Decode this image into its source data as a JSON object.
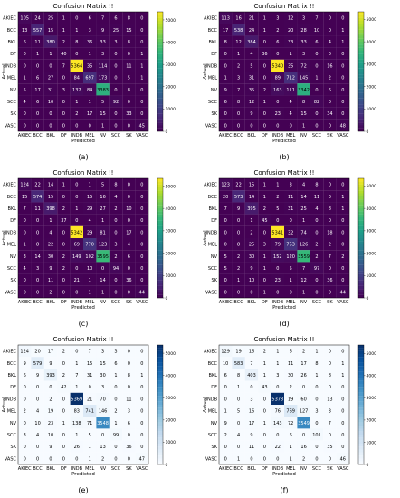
{
  "figure": {
    "labels": [
      "AKIEC",
      "BCC",
      "BKL",
      "DF",
      "INDB",
      "MEL",
      "NV",
      "SCC",
      "SK",
      "VASC"
    ]
  },
  "chart_data": [
    {
      "type": "heatmap",
      "title": "Confusion Matrix !!",
      "caption": "(a)",
      "xlabel": "Predicted",
      "ylabel": "Actual",
      "colormap": "viridis",
      "colorbar_ticks": [
        0,
        1000,
        2000,
        3000,
        4000,
        5000
      ],
      "vmax": 5364,
      "matrix": [
        [
          105,
          24,
          25,
          1,
          0,
          6,
          7,
          6,
          8,
          0
        ],
        [
          13,
          557,
          15,
          1,
          1,
          3,
          9,
          25,
          15,
          0
        ],
        [
          6,
          11,
          380,
          2,
          8,
          36,
          33,
          3,
          8,
          0
        ],
        [
          0,
          1,
          1,
          40,
          0,
          1,
          3,
          0,
          0,
          1
        ],
        [
          0,
          0,
          0,
          7,
          5364,
          35,
          114,
          0,
          11,
          1
        ],
        [
          1,
          6,
          27,
          0,
          84,
          697,
          173,
          0,
          5,
          1
        ],
        [
          5,
          17,
          31,
          3,
          132,
          84,
          3383,
          0,
          8,
          0
        ],
        [
          4,
          6,
          10,
          0,
          1,
          1,
          5,
          92,
          0,
          0
        ],
        [
          0,
          0,
          0,
          0,
          2,
          17,
          15,
          0,
          33,
          0
        ],
        [
          0,
          0,
          0,
          0,
          0,
          0,
          1,
          0,
          0,
          45
        ]
      ]
    },
    {
      "type": "heatmap",
      "title": "Confusion Matrix !!",
      "caption": "(b)",
      "xlabel": "Predicted",
      "ylabel": "Actual",
      "colormap": "viridis",
      "colorbar_ticks": [
        0,
        1000,
        2000,
        3000,
        4000,
        5000
      ],
      "vmax": 5340,
      "matrix": [
        [
          113,
          16,
          21,
          1,
          3,
          12,
          3,
          7,
          0,
          0
        ],
        [
          17,
          538,
          24,
          1,
          2,
          20,
          28,
          10,
          0,
          1
        ],
        [
          8,
          12,
          384,
          0,
          6,
          33,
          33,
          6,
          4,
          1
        ],
        [
          0,
          1,
          4,
          36,
          0,
          1,
          3,
          0,
          0,
          0
        ],
        [
          0,
          2,
          5,
          0,
          5340,
          35,
          72,
          0,
          16,
          0
        ],
        [
          1,
          3,
          31,
          0,
          89,
          712,
          145,
          1,
          2,
          0
        ],
        [
          9,
          7,
          35,
          2,
          163,
          111,
          3342,
          0,
          6,
          0
        ],
        [
          6,
          8,
          12,
          1,
          0,
          4,
          8,
          82,
          0,
          0
        ],
        [
          0,
          0,
          9,
          0,
          23,
          4,
          15,
          0,
          34,
          0
        ],
        [
          0,
          0,
          0,
          0,
          0,
          0,
          1,
          0,
          0,
          48
        ]
      ]
    },
    {
      "type": "heatmap",
      "title": "Confusion Matrix !!",
      "caption": "(c)",
      "xlabel": "Predicted",
      "ylabel": "Actual",
      "colormap": "viridis",
      "colorbar_ticks": [
        0,
        1000,
        2000,
        3000,
        4000,
        5000
      ],
      "vmax": 5342,
      "matrix": [
        [
          124,
          22,
          14,
          1,
          0,
          1,
          5,
          8,
          0,
          0
        ],
        [
          15,
          574,
          15,
          0,
          0,
          15,
          16,
          4,
          0,
          0
        ],
        [
          7,
          11,
          398,
          2,
          1,
          29,
          27,
          2,
          10,
          0
        ],
        [
          0,
          0,
          1,
          37,
          0,
          4,
          1,
          0,
          0,
          0
        ],
        [
          0,
          0,
          4,
          0,
          5342,
          29,
          81,
          0,
          17,
          0
        ],
        [
          1,
          8,
          22,
          0,
          69,
          770,
          123,
          3,
          4,
          0
        ],
        [
          3,
          14,
          30,
          2,
          149,
          102,
          3595,
          2,
          6,
          0
        ],
        [
          4,
          3,
          9,
          2,
          0,
          10,
          0,
          94,
          0,
          0
        ],
        [
          0,
          0,
          11,
          0,
          21,
          1,
          14,
          0,
          36,
          0
        ],
        [
          0,
          0,
          2,
          0,
          0,
          1,
          1,
          0,
          0,
          44
        ]
      ]
    },
    {
      "type": "heatmap",
      "title": "Confusion Matrix !!",
      "caption": "(d)",
      "xlabel": "Predicted",
      "ylabel": "Actual",
      "colormap": "viridis",
      "colorbar_ticks": [
        0,
        1000,
        2000,
        3000,
        4000,
        5000
      ],
      "vmax": 5341,
      "matrix": [
        [
          123,
          22,
          15,
          1,
          1,
          3,
          4,
          8,
          0,
          0
        ],
        [
          20,
          573,
          14,
          1,
          2,
          11,
          14,
          11,
          0,
          1
        ],
        [
          7,
          9,
          395,
          2,
          5,
          31,
          25,
          4,
          8,
          1
        ],
        [
          0,
          0,
          1,
          45,
          0,
          0,
          1,
          0,
          0,
          0
        ],
        [
          0,
          0,
          2,
          0,
          5341,
          32,
          74,
          0,
          18,
          0
        ],
        [
          0,
          8,
          25,
          3,
          79,
          753,
          126,
          2,
          2,
          0
        ],
        [
          5,
          2,
          30,
          1,
          152,
          120,
          3559,
          2,
          7,
          2
        ],
        [
          5,
          2,
          9,
          1,
          0,
          5,
          7,
          97,
          0,
          0
        ],
        [
          0,
          1,
          10,
          0,
          23,
          1,
          12,
          0,
          36,
          0
        ],
        [
          0,
          0,
          0,
          1,
          0,
          0,
          1,
          0,
          0,
          44
        ]
      ]
    },
    {
      "type": "heatmap",
      "title": "Confusion Matrix !!",
      "caption": "(e)",
      "xlabel": "Predicted",
      "ylabel": "Actual",
      "colormap": "blues",
      "colorbar_ticks": [
        0,
        1000,
        2000,
        3000,
        4000,
        5000
      ],
      "vmax": 5369,
      "matrix": [
        [
          124,
          20,
          17,
          2,
          0,
          7,
          3,
          3,
          0,
          0
        ],
        [
          9,
          579,
          9,
          0,
          1,
          15,
          15,
          6,
          0,
          0
        ],
        [
          6,
          9,
          393,
          2,
          7,
          31,
          30,
          1,
          8,
          1
        ],
        [
          0,
          0,
          0,
          42,
          1,
          0,
          3,
          0,
          0,
          0
        ],
        [
          0,
          0,
          2,
          0,
          5369,
          21,
          70,
          0,
          11,
          0
        ],
        [
          2,
          4,
          19,
          0,
          83,
          741,
          146,
          2,
          3,
          0
        ],
        [
          0,
          10,
          23,
          1,
          138,
          71,
          3548,
          1,
          6,
          0
        ],
        [
          3,
          4,
          10,
          0,
          1,
          5,
          0,
          99,
          0,
          0
        ],
        [
          0,
          0,
          9,
          0,
          26,
          1,
          13,
          0,
          36,
          0
        ],
        [
          0,
          0,
          0,
          0,
          0,
          1,
          2,
          0,
          0,
          47
        ]
      ]
    },
    {
      "type": "heatmap",
      "title": "Confusion Matrix !!",
      "caption": "(f)",
      "xlabel": "Predicted",
      "ylabel": "Actual",
      "colormap": "blues",
      "colorbar_ticks": [
        0,
        1000,
        2000,
        3000,
        4000,
        5000
      ],
      "vmax": 5378,
      "matrix": [
        [
          129,
          19,
          16,
          2,
          1,
          6,
          2,
          1,
          0,
          0
        ],
        [
          10,
          583,
          7,
          1,
          1,
          11,
          17,
          8,
          0,
          1
        ],
        [
          6,
          8,
          403,
          1,
          3,
          30,
          26,
          1,
          8,
          1
        ],
        [
          0,
          1,
          0,
          43,
          0,
          2,
          0,
          0,
          0,
          0
        ],
        [
          0,
          0,
          3,
          0,
          5378,
          19,
          60,
          0,
          13,
          0
        ],
        [
          1,
          5,
          16,
          0,
          76,
          769,
          127,
          3,
          3,
          0
        ],
        [
          9,
          0,
          17,
          1,
          143,
          72,
          3549,
          0,
          7,
          0
        ],
        [
          2,
          4,
          9,
          0,
          0,
          6,
          0,
          101,
          0,
          0
        ],
        [
          0,
          0,
          11,
          0,
          22,
          1,
          16,
          0,
          35,
          0
        ],
        [
          0,
          1,
          0,
          0,
          0,
          1,
          2,
          0,
          0,
          46
        ]
      ]
    }
  ]
}
